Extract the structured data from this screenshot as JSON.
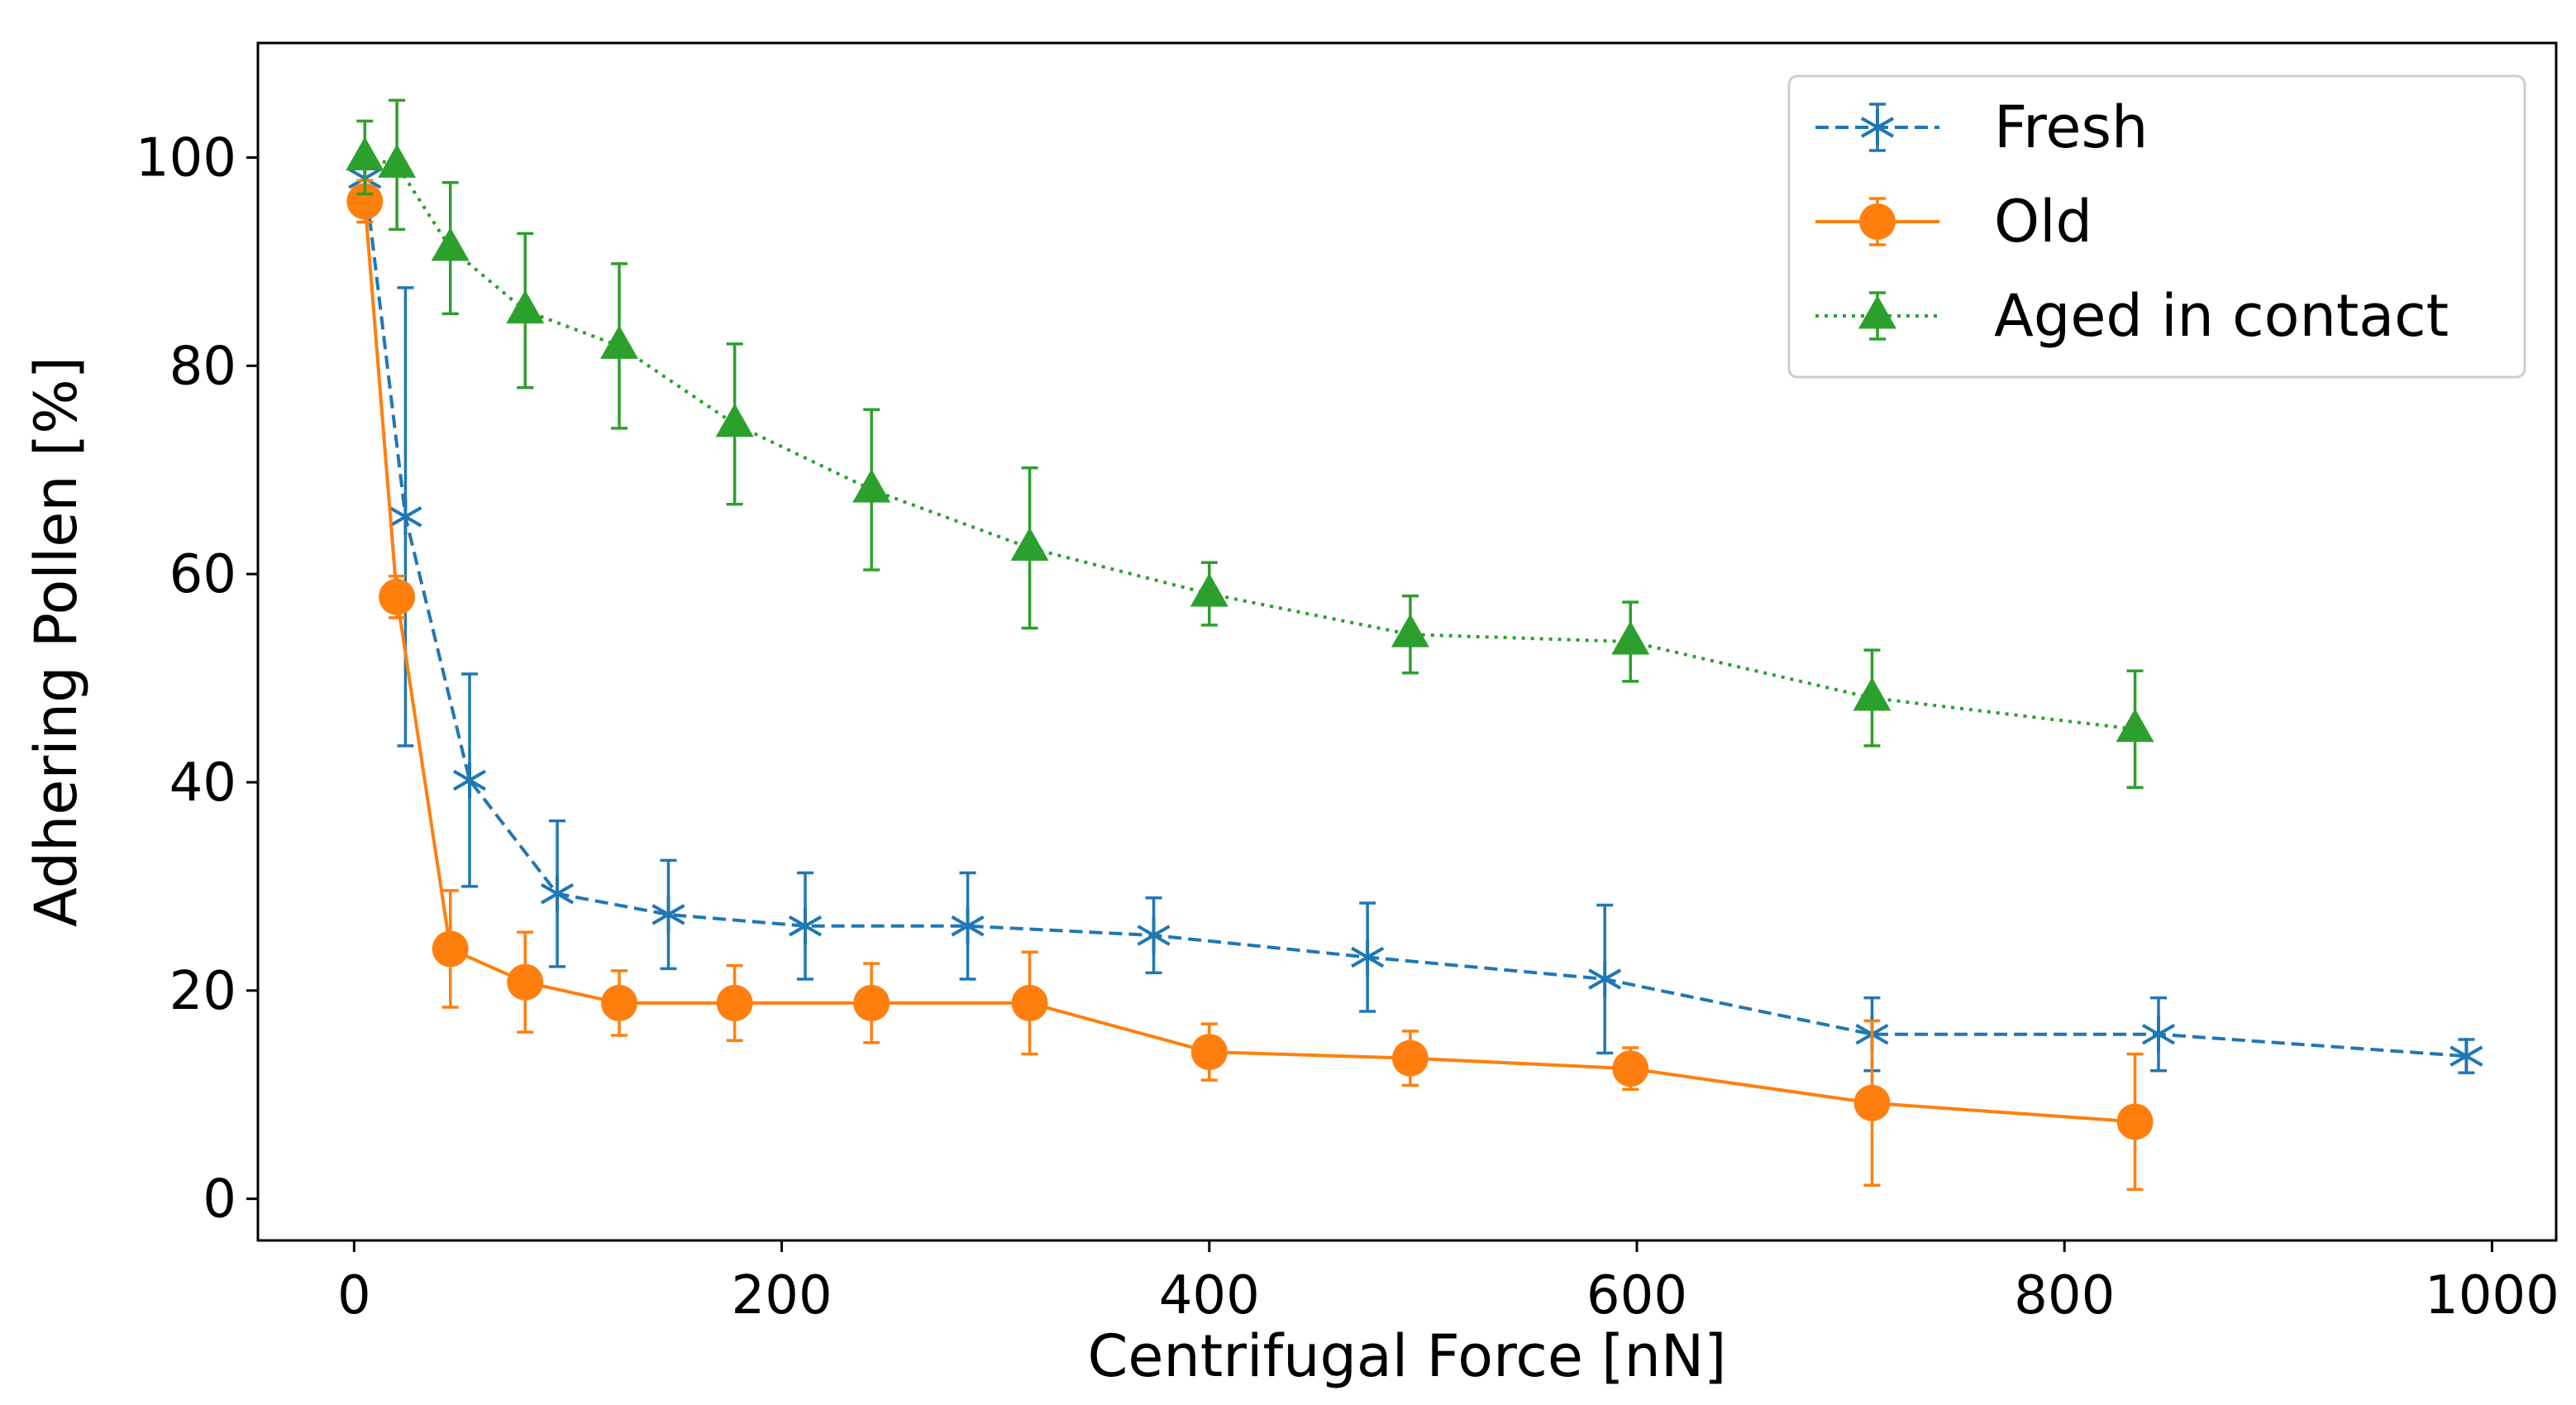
{
  "chart_data": {
    "type": "line",
    "title": "",
    "xlabel": "Centrifugal Force [nN]",
    "ylabel": "Adhering Pollen [%]",
    "xlim": [
      -45,
      1030
    ],
    "ylim": [
      -4,
      111
    ],
    "xticks": [
      0,
      200,
      400,
      600,
      800,
      1000
    ],
    "yticks": [
      0,
      20,
      40,
      60,
      80,
      100
    ],
    "grid": false,
    "legend_position": "top-right",
    "series": [
      {
        "name": "Fresh",
        "color": "#1f77b4",
        "line_style": "dashed",
        "marker": "x-star",
        "x": [
          5,
          24,
          54,
          95,
          147,
          211,
          287,
          374,
          474,
          585,
          710,
          844,
          988
        ],
        "y": [
          98,
          65.5,
          40.2,
          29.3,
          27.3,
          26.2,
          26.2,
          25.3,
          23.2,
          21.1,
          15.8,
          15.8,
          13.7
        ],
        "err": [
          2,
          22,
          10.2,
          7,
          5.2,
          5.1,
          5.1,
          3.6,
          5.2,
          7.1,
          3.5,
          3.5,
          1.6
        ]
      },
      {
        "name": "Old",
        "color": "#ff7f0e",
        "line_style": "solid",
        "marker": "circle",
        "x": [
          5,
          20,
          45,
          80,
          124,
          178,
          242,
          316,
          400,
          494,
          597,
          710,
          833
        ],
        "y": [
          95.8,
          57.8,
          24,
          20.8,
          18.8,
          18.8,
          18.8,
          18.8,
          14.1,
          13.5,
          12.5,
          9.2,
          7.4
        ],
        "err": [
          2,
          2,
          5.6,
          4.8,
          3.1,
          3.6,
          3.8,
          4.9,
          2.7,
          2.6,
          2.0,
          7.9,
          6.5
        ]
      },
      {
        "name": "Aged in contact",
        "color": "#2ca02c",
        "line_style": "dotted",
        "marker": "triangle",
        "x": [
          5,
          20,
          45,
          80,
          124,
          178,
          242,
          316,
          400,
          494,
          597,
          710,
          833
        ],
        "y": [
          100,
          99.3,
          91.3,
          85.3,
          81.9,
          74.4,
          68.1,
          62.5,
          58.1,
          54.2,
          53.5,
          48.1,
          45.1
        ],
        "err": [
          3.5,
          6.2,
          6.3,
          7.4,
          7.9,
          7.7,
          7.7,
          7.7,
          3.0,
          3.7,
          3.8,
          4.6,
          5.6
        ]
      }
    ]
  }
}
